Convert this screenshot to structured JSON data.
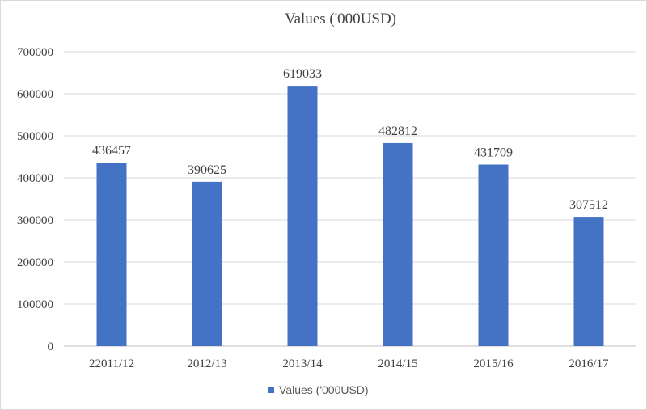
{
  "chart_data": {
    "type": "bar",
    "title": "Values ('000USD)",
    "categories": [
      "22011/12",
      "2012/13",
      "2013/14",
      "2014/15",
      "2015/16",
      "2016/17"
    ],
    "series": [
      {
        "name": "Values ('000USD)",
        "color": "#4472c4",
        "values": [
          436457,
          390625,
          619033,
          482812,
          431709,
          307512
        ]
      }
    ],
    "ylim": [
      0,
      700000
    ],
    "yticks": [
      0,
      100000,
      200000,
      300000,
      400000,
      500000,
      600000,
      700000
    ],
    "grid": true,
    "legend": "bottom"
  }
}
